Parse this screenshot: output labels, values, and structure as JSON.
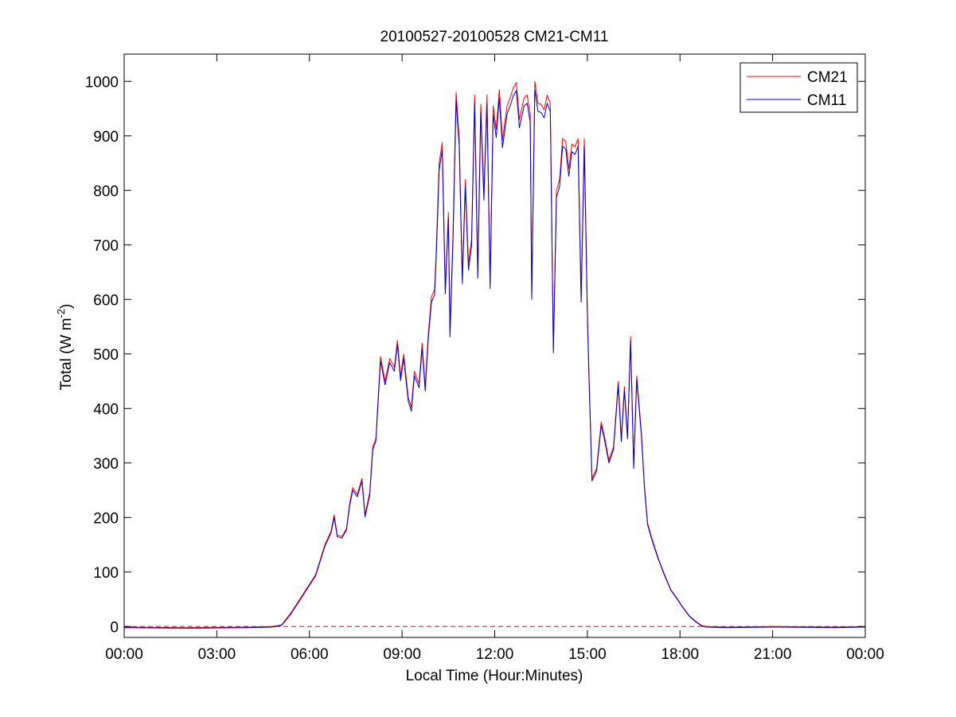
{
  "chart_data": {
    "type": "line",
    "title": "20100527-20100528 CM21-CM11",
    "xlabel": "Local Time (Hour:Minutes)",
    "ylabel": "Total (W m",
    "ylabel_superscript": "-2",
    "ylabel_suffix": ")",
    "xlim": [
      0,
      24
    ],
    "ylim": [
      -20,
      1050
    ],
    "x_ticks": [
      0,
      3,
      6,
      9,
      12,
      15,
      18,
      21,
      24
    ],
    "x_tick_labels": [
      "00:00",
      "03:00",
      "06:00",
      "09:00",
      "12:00",
      "15:00",
      "18:00",
      "21:00",
      "00:00"
    ],
    "y_ticks": [
      0,
      100,
      200,
      300,
      400,
      500,
      600,
      700,
      800,
      900,
      1000
    ],
    "y_tick_labels": [
      "0",
      "100",
      "200",
      "300",
      "400",
      "500",
      "600",
      "700",
      "800",
      "900",
      "1000"
    ],
    "reference_line": {
      "y": 0,
      "style": "dashed",
      "color": "#ff0000"
    },
    "legend_position": "top-right",
    "grid": false,
    "series": [
      {
        "name": "CM21",
        "color": "#ff0000",
        "points": [
          [
            0,
            -1
          ],
          [
            2,
            -2
          ],
          [
            4,
            -1
          ],
          [
            4.8,
            0
          ],
          [
            5.1,
            3
          ],
          [
            5.4,
            25
          ],
          [
            5.8,
            60
          ],
          [
            6.2,
            95
          ],
          [
            6.5,
            150
          ],
          [
            6.7,
            175
          ],
          [
            6.8,
            205
          ],
          [
            6.9,
            168
          ],
          [
            7.05,
            165
          ],
          [
            7.2,
            180
          ],
          [
            7.3,
            225
          ],
          [
            7.4,
            255
          ],
          [
            7.55,
            242
          ],
          [
            7.7,
            272
          ],
          [
            7.8,
            205
          ],
          [
            7.95,
            245
          ],
          [
            8.05,
            330
          ],
          [
            8.15,
            345
          ],
          [
            8.3,
            495
          ],
          [
            8.45,
            450
          ],
          [
            8.6,
            492
          ],
          [
            8.75,
            475
          ],
          [
            8.85,
            525
          ],
          [
            8.95,
            458
          ],
          [
            9.05,
            500
          ],
          [
            9.2,
            420
          ],
          [
            9.3,
            402
          ],
          [
            9.4,
            468
          ],
          [
            9.55,
            445
          ],
          [
            9.65,
            520
          ],
          [
            9.75,
            440
          ],
          [
            9.85,
            538
          ],
          [
            9.95,
            605
          ],
          [
            10.05,
            618
          ],
          [
            10.1,
            680
          ],
          [
            10.2,
            850
          ],
          [
            10.3,
            888
          ],
          [
            10.4,
            620
          ],
          [
            10.5,
            760
          ],
          [
            10.55,
            540
          ],
          [
            10.65,
            720
          ],
          [
            10.75,
            980
          ],
          [
            10.85,
            895
          ],
          [
            10.95,
            640
          ],
          [
            11.05,
            820
          ],
          [
            11.15,
            665
          ],
          [
            11.25,
            710
          ],
          [
            11.35,
            975
          ],
          [
            11.45,
            650
          ],
          [
            11.55,
            958
          ],
          [
            11.65,
            795
          ],
          [
            11.75,
            975
          ],
          [
            11.85,
            630
          ],
          [
            11.95,
            955
          ],
          [
            12.05,
            912
          ],
          [
            12.15,
            985
          ],
          [
            12.25,
            892
          ],
          [
            12.4,
            955
          ],
          [
            12.5,
            970
          ],
          [
            12.6,
            988
          ],
          [
            12.7,
            998
          ],
          [
            12.8,
            930
          ],
          [
            12.95,
            970
          ],
          [
            13.05,
            975
          ],
          [
            13.15,
            940
          ],
          [
            13.2,
            610
          ],
          [
            13.3,
            1000
          ],
          [
            13.4,
            960
          ],
          [
            13.5,
            958
          ],
          [
            13.6,
            948
          ],
          [
            13.7,
            975
          ],
          [
            13.8,
            960
          ],
          [
            13.9,
            510
          ],
          [
            14.0,
            800
          ],
          [
            14.1,
            820
          ],
          [
            14.2,
            895
          ],
          [
            14.3,
            890
          ],
          [
            14.4,
            840
          ],
          [
            14.5,
            885
          ],
          [
            14.6,
            880
          ],
          [
            14.7,
            895
          ],
          [
            14.8,
            605
          ],
          [
            14.9,
            895
          ],
          [
            15.0,
            580
          ],
          [
            15.05,
            470
          ],
          [
            15.15,
            272
          ],
          [
            15.3,
            290
          ],
          [
            15.45,
            375
          ],
          [
            15.55,
            350
          ],
          [
            15.7,
            305
          ],
          [
            15.85,
            330
          ],
          [
            16.0,
            450
          ],
          [
            16.1,
            345
          ],
          [
            16.2,
            440
          ],
          [
            16.3,
            350
          ],
          [
            16.4,
            532
          ],
          [
            16.5,
            295
          ],
          [
            16.6,
            460
          ],
          [
            16.75,
            355
          ],
          [
            16.85,
            258
          ],
          [
            16.95,
            190
          ],
          [
            17.1,
            160
          ],
          [
            17.3,
            125
          ],
          [
            17.5,
            95
          ],
          [
            17.7,
            68
          ],
          [
            17.9,
            52
          ],
          [
            18.1,
            35
          ],
          [
            18.3,
            20
          ],
          [
            18.5,
            10
          ],
          [
            18.7,
            2
          ],
          [
            18.85,
            0
          ],
          [
            19.5,
            -1
          ],
          [
            21,
            0
          ],
          [
            23,
            -1
          ],
          [
            24,
            0
          ]
        ]
      },
      {
        "name": "CM11",
        "color": "#0000cc",
        "points": [
          [
            0,
            -2
          ],
          [
            2,
            -3
          ],
          [
            4,
            -2
          ],
          [
            4.8,
            -1
          ],
          [
            5.1,
            2
          ],
          [
            5.4,
            23
          ],
          [
            5.8,
            58
          ],
          [
            6.2,
            93
          ],
          [
            6.5,
            147
          ],
          [
            6.7,
            172
          ],
          [
            6.8,
            200
          ],
          [
            6.9,
            165
          ],
          [
            7.05,
            162
          ],
          [
            7.2,
            177
          ],
          [
            7.3,
            221
          ],
          [
            7.4,
            250
          ],
          [
            7.55,
            238
          ],
          [
            7.7,
            267
          ],
          [
            7.8,
            201
          ],
          [
            7.95,
            240
          ],
          [
            8.05,
            324
          ],
          [
            8.15,
            340
          ],
          [
            8.3,
            487
          ],
          [
            8.45,
            443
          ],
          [
            8.6,
            484
          ],
          [
            8.75,
            468
          ],
          [
            8.85,
            517
          ],
          [
            8.95,
            451
          ],
          [
            9.05,
            492
          ],
          [
            9.2,
            413
          ],
          [
            9.3,
            395
          ],
          [
            9.4,
            460
          ],
          [
            9.55,
            438
          ],
          [
            9.65,
            511
          ],
          [
            9.75,
            432
          ],
          [
            9.85,
            529
          ],
          [
            9.95,
            595
          ],
          [
            10.05,
            608
          ],
          [
            10.1,
            669
          ],
          [
            10.2,
            837
          ],
          [
            10.3,
            875
          ],
          [
            10.4,
            610
          ],
          [
            10.5,
            748
          ],
          [
            10.55,
            531
          ],
          [
            10.65,
            708
          ],
          [
            10.75,
            965
          ],
          [
            10.85,
            881
          ],
          [
            10.95,
            629
          ],
          [
            11.05,
            807
          ],
          [
            11.15,
            654
          ],
          [
            11.25,
            698
          ],
          [
            11.35,
            960
          ],
          [
            11.45,
            639
          ],
          [
            11.55,
            943
          ],
          [
            11.65,
            782
          ],
          [
            11.75,
            960
          ],
          [
            11.85,
            620
          ],
          [
            11.95,
            940
          ],
          [
            12.05,
            897
          ],
          [
            12.15,
            970
          ],
          [
            12.25,
            878
          ],
          [
            12.4,
            940
          ],
          [
            12.5,
            955
          ],
          [
            12.6,
            973
          ],
          [
            12.7,
            983
          ],
          [
            12.8,
            915
          ],
          [
            12.95,
            955
          ],
          [
            13.05,
            960
          ],
          [
            13.15,
            925
          ],
          [
            13.2,
            600
          ],
          [
            13.3,
            985
          ],
          [
            13.4,
            945
          ],
          [
            13.5,
            943
          ],
          [
            13.6,
            933
          ],
          [
            13.7,
            960
          ],
          [
            13.8,
            945
          ],
          [
            13.9,
            502
          ],
          [
            14.0,
            787
          ],
          [
            14.1,
            807
          ],
          [
            14.2,
            881
          ],
          [
            14.3,
            876
          ],
          [
            14.4,
            826
          ],
          [
            14.5,
            871
          ],
          [
            14.6,
            866
          ],
          [
            14.7,
            881
          ],
          [
            14.8,
            595
          ],
          [
            14.9,
            881
          ],
          [
            15.0,
            570
          ],
          [
            15.05,
            462
          ],
          [
            15.15,
            267
          ],
          [
            15.3,
            285
          ],
          [
            15.45,
            369
          ],
          [
            15.55,
            344
          ],
          [
            15.7,
            300
          ],
          [
            15.85,
            325
          ],
          [
            16.0,
            443
          ],
          [
            16.1,
            339
          ],
          [
            16.2,
            433
          ],
          [
            16.3,
            344
          ],
          [
            16.4,
            524
          ],
          [
            16.5,
            290
          ],
          [
            16.6,
            453
          ],
          [
            16.75,
            349
          ],
          [
            16.85,
            254
          ],
          [
            16.95,
            187
          ],
          [
            17.1,
            157
          ],
          [
            17.3,
            123
          ],
          [
            17.5,
            93
          ],
          [
            17.7,
            67
          ],
          [
            17.9,
            51
          ],
          [
            18.1,
            34
          ],
          [
            18.3,
            19
          ],
          [
            18.5,
            9
          ],
          [
            18.7,
            1
          ],
          [
            18.85,
            -1
          ],
          [
            19.5,
            -2
          ],
          [
            21,
            -1
          ],
          [
            23,
            -2
          ],
          [
            24,
            -1
          ]
        ]
      }
    ]
  }
}
